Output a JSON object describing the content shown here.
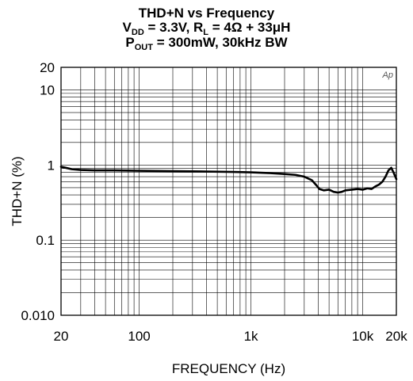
{
  "chart_data": {
    "type": "line",
    "title_line1": "THD+N vs Frequency",
    "title_line2": {
      "v": "V",
      "v_sub": "DD",
      "mid": " = 3.3V, R",
      "r_sub": "L",
      "end": " = 4Ω + 33μH"
    },
    "title_line3": {
      "p": "P",
      "p_sub": "OUT",
      "end": " = 300mW, 30kHz BW"
    },
    "xlabel": "FREQUENCY (Hz)",
    "ylabel": "THD+N (%)",
    "watermark": "Ap",
    "xscale": "log",
    "yscale": "log",
    "xlim": [
      20,
      20000
    ],
    "ylim": [
      0.01,
      20
    ],
    "x_tick_labels": [
      {
        "value": 20,
        "label": "20"
      },
      {
        "value": 100,
        "label": "100"
      },
      {
        "value": 1000,
        "label": "1k"
      },
      {
        "value": 10000,
        "label": "10k"
      },
      {
        "value": 20000,
        "label": "20k"
      }
    ],
    "y_tick_labels": [
      {
        "value": 20,
        "label": "20"
      },
      {
        "value": 10,
        "label": "10"
      },
      {
        "value": 1,
        "label": "1"
      },
      {
        "value": 0.1,
        "label": "0.1"
      },
      {
        "value": 0.01,
        "label": "0.010"
      }
    ],
    "grid": true,
    "series": [
      {
        "x": [
          20,
          22,
          25,
          30,
          40,
          60,
          100,
          200,
          400,
          700,
          1000,
          1500,
          2000,
          2500,
          3000,
          3500,
          3800,
          4100,
          4500,
          5000,
          5500,
          6000,
          6500,
          7000,
          8000,
          9000,
          10000,
          11000,
          12000,
          13000,
          14000,
          15000,
          16000,
          17000,
          18000,
          19000,
          20000
        ],
        "y": [
          0.95,
          0.92,
          0.88,
          0.86,
          0.85,
          0.85,
          0.84,
          0.83,
          0.82,
          0.81,
          0.8,
          0.78,
          0.76,
          0.74,
          0.7,
          0.63,
          0.55,
          0.48,
          0.46,
          0.47,
          0.44,
          0.43,
          0.44,
          0.46,
          0.47,
          0.48,
          0.47,
          0.49,
          0.48,
          0.52,
          0.55,
          0.6,
          0.7,
          0.85,
          0.92,
          0.78,
          0.65
        ]
      }
    ]
  }
}
